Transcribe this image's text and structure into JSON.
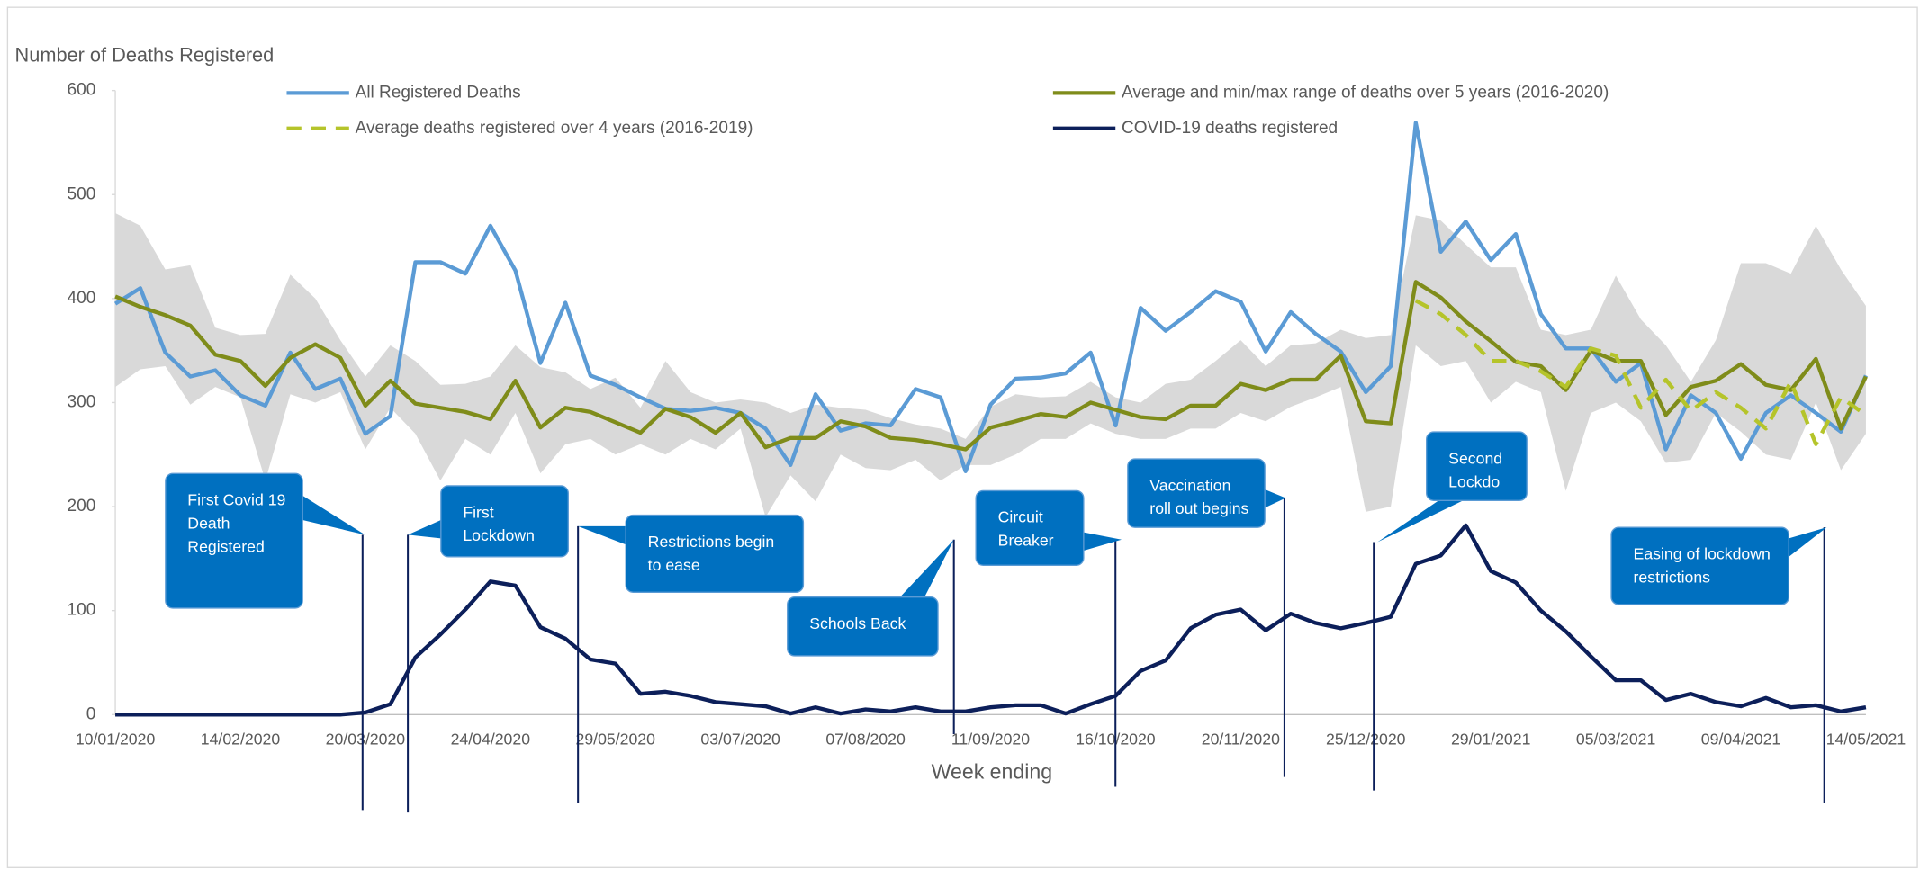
{
  "chart_data": {
    "type": "line",
    "y_label": "Number of Deaths Registered",
    "x_label": "Week ending",
    "categories": [
      "10/01/2020",
      null,
      null,
      null,
      null,
      "14/02/2020",
      null,
      null,
      null,
      null,
      "20/03/2020",
      null,
      null,
      null,
      null,
      "24/04/2020",
      null,
      null,
      null,
      null,
      "29/05/2020",
      null,
      null,
      null,
      null,
      "03/07/2020",
      null,
      null,
      null,
      null,
      "07/08/2020",
      null,
      null,
      null,
      null,
      "11/09/2020",
      null,
      null,
      null,
      null,
      "16/10/2020",
      null,
      null,
      null,
      null,
      "20/11/2020",
      null,
      null,
      null,
      null,
      "25/12/2020",
      null,
      null,
      null,
      null,
      "29/01/2021",
      null,
      null,
      null,
      null,
      "05/03/2021",
      null,
      null,
      null,
      null,
      "09/04/2021",
      null,
      null,
      null,
      null,
      "14/05/2021"
    ],
    "ylim": [
      0,
      600
    ],
    "yticks": [
      0,
      100,
      200,
      300,
      400,
      500,
      600
    ],
    "series": [
      {
        "name": "All Registered Deaths",
        "color": "#5b9bd5",
        "values": [
          395,
          410,
          348,
          325,
          331,
          307,
          297,
          348,
          313,
          323,
          270,
          287,
          435,
          435,
          424,
          470,
          427,
          338,
          396,
          326,
          317,
          305,
          294,
          292,
          295,
          290,
          275,
          240,
          308,
          273,
          280,
          278,
          313,
          305,
          234,
          298,
          323,
          324,
          328,
          348,
          278,
          391,
          369,
          387,
          407,
          397,
          349,
          387,
          366,
          349,
          310,
          335,
          569,
          445,
          474,
          437,
          462,
          385,
          352,
          352,
          320,
          338,
          255,
          307,
          290,
          246,
          290,
          307,
          290,
          272,
          326
        ]
      },
      {
        "name": "Average and min/max range of deaths over 5 years (2016-2020)",
        "color": "#7f8c1a",
        "range_color": "#d9d9d9",
        "values": [
          402,
          392,
          384,
          374,
          346,
          340,
          316,
          343,
          356,
          343,
          297,
          321,
          299,
          295,
          291,
          284,
          321,
          276,
          295,
          291,
          281,
          271,
          294,
          286,
          271,
          290,
          257,
          266,
          266,
          282,
          277,
          266,
          264,
          260,
          255,
          276,
          282,
          289,
          286,
          300,
          293,
          286,
          284,
          297,
          297,
          318,
          312,
          322,
          322,
          345,
          282,
          280,
          416,
          401,
          378,
          359,
          339,
          335,
          312,
          350,
          340,
          340,
          288,
          315,
          321,
          337,
          317,
          312,
          342,
          275,
          325
        ],
        "max": [
          482,
          470,
          428,
          432,
          372,
          365,
          366,
          423,
          400,
          360,
          325,
          355,
          340,
          317,
          318,
          325,
          355,
          334,
          329,
          313,
          324,
          295,
          340,
          310,
          300,
          303,
          300,
          290,
          298,
          295,
          293,
          285,
          279,
          275,
          265,
          296,
          308,
          305,
          306,
          320,
          305,
          300,
          318,
          322,
          340,
          360,
          335,
          355,
          357,
          370,
          362,
          365,
          480,
          475,
          452,
          430,
          430,
          370,
          365,
          370,
          422,
          380,
          355,
          320,
          360,
          434,
          434,
          424,
          470,
          428,
          393
        ],
        "min": [
          315,
          332,
          335,
          298,
          315,
          305,
          225,
          308,
          300,
          310,
          255,
          295,
          270,
          225,
          265,
          250,
          290,
          232,
          260,
          265,
          250,
          260,
          250,
          265,
          255,
          275,
          190,
          230,
          205,
          250,
          237,
          235,
          245,
          225,
          240,
          240,
          250,
          265,
          265,
          280,
          270,
          265,
          265,
          275,
          275,
          290,
          282,
          296,
          305,
          315,
          195,
          200,
          355,
          335,
          340,
          300,
          320,
          310,
          215,
          290,
          300,
          282,
          242,
          245,
          290,
          272,
          250,
          245,
          300,
          235,
          270
        ]
      },
      {
        "name": "Average deaths registered over 4 years (2016-2019)",
        "color": "#b5c42a",
        "dashed": true,
        "values": [
          null,
          null,
          null,
          null,
          null,
          null,
          null,
          null,
          null,
          null,
          null,
          null,
          null,
          null,
          null,
          null,
          null,
          null,
          null,
          null,
          null,
          null,
          null,
          null,
          null,
          null,
          null,
          null,
          null,
          null,
          null,
          null,
          null,
          null,
          null,
          null,
          null,
          null,
          null,
          null,
          null,
          null,
          null,
          null,
          null,
          null,
          null,
          null,
          null,
          null,
          null,
          null,
          398,
          385,
          365,
          340,
          340,
          330,
          315,
          352,
          345,
          295,
          322,
          292,
          310,
          295,
          275,
          320,
          260,
          305,
          288
        ]
      },
      {
        "name": "COVID-19 deaths registered",
        "color": "#0c1f5a",
        "values": [
          0,
          0,
          0,
          0,
          0,
          0,
          0,
          0,
          0,
          0,
          2,
          10,
          55,
          77,
          101,
          128,
          124,
          84,
          73,
          53,
          49,
          20,
          22,
          18,
          12,
          10,
          8,
          1,
          7,
          1,
          5,
          3,
          7,
          3,
          3,
          7,
          9,
          9,
          1,
          10,
          18,
          42,
          52,
          83,
          96,
          101,
          81,
          97,
          88,
          83,
          88,
          94,
          145,
          153,
          182,
          138,
          127,
          100,
          80,
          56,
          33,
          33,
          14,
          20,
          12,
          8,
          16,
          7,
          9,
          3,
          7
        ]
      }
    ],
    "annotations": [
      "First Covid 19 Death Registered",
      "First Lockdown",
      "Restrictions  begin to ease",
      "Schools Back",
      "Circuit Breaker",
      "Vaccination roll out begins",
      "Second Lockdo",
      "Easing of lockdown restrictions"
    ],
    "annotation_color": "#0070c0"
  }
}
